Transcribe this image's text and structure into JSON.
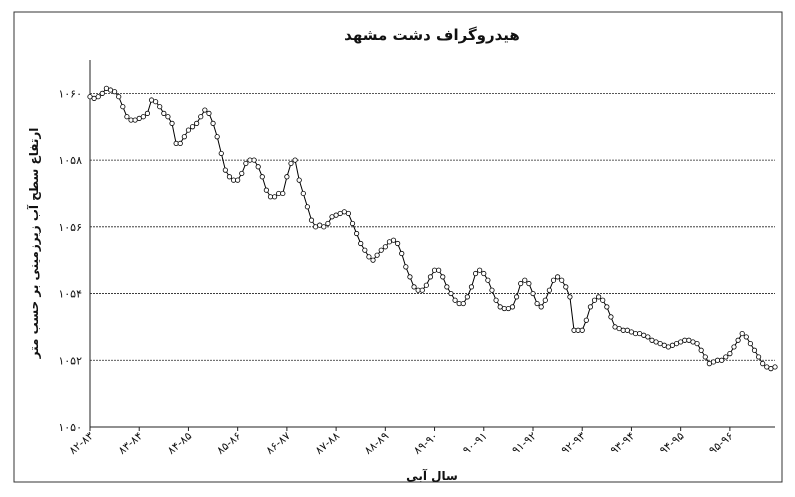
{
  "chart_data": {
    "type": "line",
    "title": "هیدروگراف دشت مشهد",
    "ylabel": "ارتفاع سطح آب زیرزمینی بر حسب متر",
    "xlabel": "سال آبی",
    "color": "#000000",
    "grid": true,
    "ylim": [
      1050,
      1061
    ],
    "yticks": [
      {
        "value": 1050,
        "label": "۱۰۵۰"
      },
      {
        "value": 1052,
        "label": "۱۰۵۲"
      },
      {
        "value": 1054,
        "label": "۱۰۵۴"
      },
      {
        "value": 1056,
        "label": "۱۰۵۶"
      },
      {
        "value": 1058,
        "label": "۱۰۵۸"
      },
      {
        "value": 1060,
        "label": "۱۰۶۰"
      }
    ],
    "categories": [
      "۸۲-۸۳",
      null,
      null,
      null,
      null,
      null,
      null,
      null,
      null,
      null,
      null,
      null,
      "۸۳-۸۴",
      null,
      null,
      null,
      null,
      null,
      null,
      null,
      null,
      null,
      null,
      null,
      "۸۴-۸۵",
      null,
      null,
      null,
      null,
      null,
      null,
      null,
      null,
      null,
      null,
      null,
      "۸۵-۸۶",
      null,
      null,
      null,
      null,
      null,
      null,
      null,
      null,
      null,
      null,
      null,
      "۸۶-۸۷",
      null,
      null,
      null,
      null,
      null,
      null,
      null,
      null,
      null,
      null,
      null,
      "۸۷-۸۸",
      null,
      null,
      null,
      null,
      null,
      null,
      null,
      null,
      null,
      null,
      null,
      "۸۸-۸۹",
      null,
      null,
      null,
      null,
      null,
      null,
      null,
      null,
      null,
      null,
      null,
      "۸۹-۹۰",
      null,
      null,
      null,
      null,
      null,
      null,
      null,
      null,
      null,
      null,
      null,
      "۹۰-۹۱",
      null,
      null,
      null,
      null,
      null,
      null,
      null,
      null,
      null,
      null,
      null,
      "۹۱-۹۲",
      null,
      null,
      null,
      null,
      null,
      null,
      null,
      null,
      null,
      null,
      null,
      "۹۲-۹۳",
      null,
      null,
      null,
      null,
      null,
      null,
      null,
      null,
      null,
      null,
      null,
      "۹۳-۹۴",
      null,
      null,
      null,
      null,
      null,
      null,
      null,
      null,
      null,
      null,
      null,
      "۹۴-۹۵",
      null,
      null,
      null,
      null,
      null,
      null,
      null,
      null,
      null,
      null,
      null,
      "۹۵-۹۶",
      null,
      null,
      null,
      null,
      null,
      null,
      null,
      null,
      null,
      null,
      null
    ],
    "values": [
      1059.9,
      1059.85,
      1059.9,
      1060.0,
      1060.15,
      1060.1,
      1060.05,
      1059.9,
      1059.6,
      1059.3,
      1059.2,
      1059.2,
      1059.25,
      1059.3,
      1059.4,
      1059.8,
      1059.75,
      1059.6,
      1059.4,
      1059.3,
      1059.1,
      1058.5,
      1058.5,
      1058.7,
      1058.9,
      1059.0,
      1059.1,
      1059.3,
      1059.5,
      1059.4,
      1059.1,
      1058.7,
      1058.2,
      1057.7,
      1057.5,
      1057.4,
      1057.4,
      1057.6,
      1057.9,
      1058.0,
      1058.0,
      1057.8,
      1057.5,
      1057.1,
      1056.9,
      1056.9,
      1057.0,
      1057.0,
      1057.5,
      1057.9,
      1058.0,
      1057.4,
      1057.0,
      1056.6,
      1056.2,
      1056.0,
      1056.05,
      1056.0,
      1056.1,
      1056.3,
      1056.35,
      1056.4,
      1056.45,
      1056.4,
      1056.1,
      1055.8,
      1055.5,
      1055.3,
      1055.1,
      1055.0,
      1055.15,
      1055.3,
      1055.4,
      1055.55,
      1055.6,
      1055.5,
      1055.2,
      1054.8,
      1054.5,
      1054.2,
      1054.1,
      1054.1,
      1054.25,
      1054.5,
      1054.7,
      1054.7,
      1054.5,
      1054.2,
      1054.0,
      1053.8,
      1053.7,
      1053.7,
      1053.9,
      1054.2,
      1054.6,
      1054.7,
      1054.6,
      1054.4,
      1054.1,
      1053.8,
      1053.6,
      1053.55,
      1053.55,
      1053.6,
      1053.9,
      1054.3,
      1054.4,
      1054.3,
      1054.0,
      1053.7,
      1053.6,
      1053.8,
      1054.1,
      1054.4,
      1054.5,
      1054.4,
      1054.2,
      1053.9,
      1052.9,
      1052.9,
      1052.9,
      1053.2,
      1053.6,
      1053.8,
      1053.9,
      1053.8,
      1053.6,
      1053.3,
      1053.0,
      1052.95,
      1052.9,
      1052.9,
      1052.85,
      1052.8,
      1052.8,
      1052.75,
      1052.7,
      1052.6,
      1052.55,
      1052.5,
      1052.45,
      1052.4,
      1052.45,
      1052.5,
      1052.55,
      1052.6,
      1052.6,
      1052.55,
      1052.5,
      1052.3,
      1052.1,
      1051.9,
      1051.95,
      1052.0,
      1052.0,
      1052.1,
      1052.2,
      1052.4,
      1052.6,
      1052.8,
      1052.7,
      1052.5,
      1052.3,
      1052.1,
      1051.9,
      1051.8,
      1051.75,
      1051.8
    ]
  }
}
